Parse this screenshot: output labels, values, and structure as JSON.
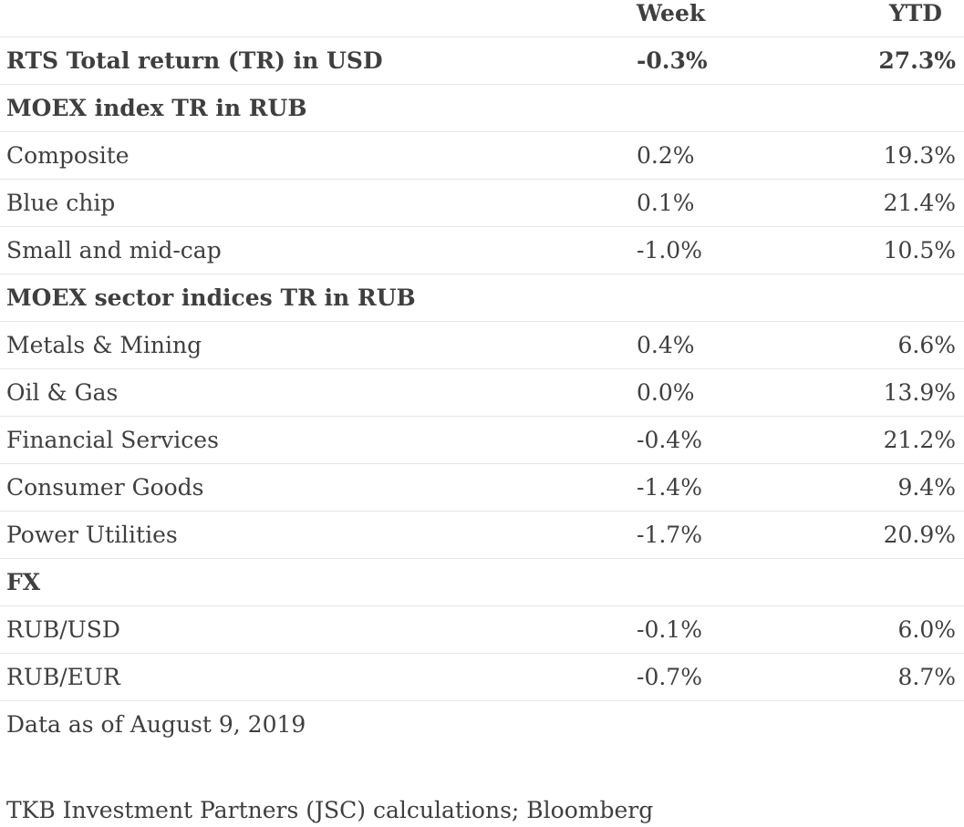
{
  "table": {
    "columns": {
      "label": "",
      "week": "Week",
      "ytd": "YTD"
    },
    "rows": [
      {
        "label": "RTS Total return (TR) in USD",
        "week": "-0.3%",
        "ytd": "27.3%",
        "bold": true
      },
      {
        "label": "MOEX index TR in RUB",
        "week": "",
        "ytd": "",
        "bold": true
      },
      {
        "label": "Composite",
        "week": "0.2%",
        "ytd": "19.3%",
        "bold": false
      },
      {
        "label": "Blue chip",
        "week": "0.1%",
        "ytd": "21.4%",
        "bold": false
      },
      {
        "label": "Small and mid-cap",
        "week": "-1.0%",
        "ytd": "10.5%",
        "bold": false
      },
      {
        "label": "MOEX sector indices TR in RUB",
        "week": "",
        "ytd": "",
        "bold": true
      },
      {
        "label": "Metals & Mining",
        "week": "0.4%",
        "ytd": "6.6%",
        "bold": false
      },
      {
        "label": "Oil & Gas",
        "week": "0.0%",
        "ytd": "13.9%",
        "bold": false
      },
      {
        "label": "Financial Services",
        "week": "-0.4%",
        "ytd": "21.2%",
        "bold": false
      },
      {
        "label": "Consumer Goods",
        "week": "-1.4%",
        "ytd": "9.4%",
        "bold": false
      },
      {
        "label": "Power Utilities",
        "week": "-1.7%",
        "ytd": "20.9%",
        "bold": false
      },
      {
        "label": "FX",
        "week": "",
        "ytd": "",
        "bold": true
      },
      {
        "label": "RUB/USD",
        "week": "-0.1%",
        "ytd": "6.0%",
        "bold": false
      },
      {
        "label": "RUB/EUR",
        "week": "-0.7%",
        "ytd": "8.7%",
        "bold": false
      }
    ]
  },
  "footer": {
    "note": "Data as of August 9, 2019",
    "source": "TKB Investment Partners (JSC) calculations; Bloomberg"
  }
}
